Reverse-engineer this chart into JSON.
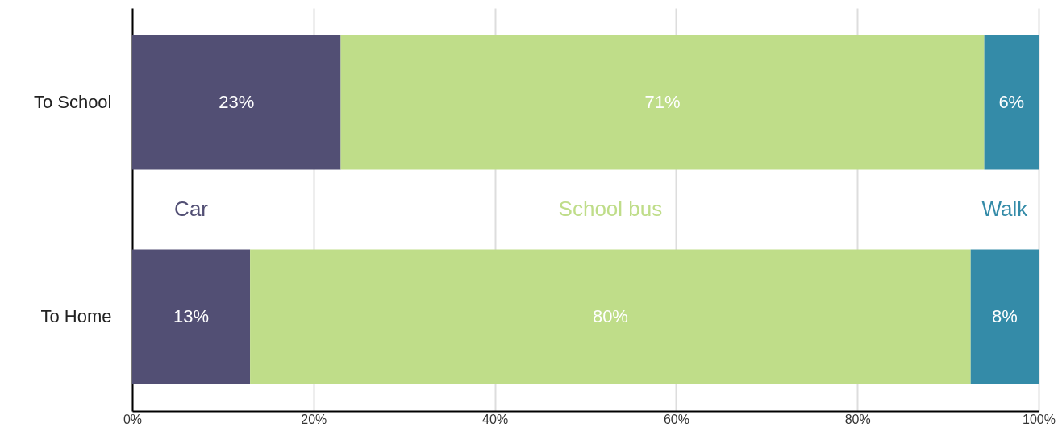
{
  "chart_data": {
    "type": "bar",
    "orientation": "horizontal",
    "stacked": true,
    "categories": [
      "To School",
      "To Home"
    ],
    "series": [
      {
        "name": "Car",
        "color": "#524f74",
        "values": [
          23,
          13
        ],
        "value_labels": [
          "23%",
          "13%"
        ]
      },
      {
        "name": "School bus",
        "color": "#bfdd89",
        "values": [
          71,
          79.5
        ],
        "value_labels": [
          "71%",
          "80%"
        ]
      },
      {
        "name": "Walk",
        "color": "#348ba8",
        "values": [
          6,
          7.5
        ],
        "value_labels": [
          "6%",
          "8%"
        ]
      }
    ],
    "xlim": [
      0,
      100
    ],
    "xticks": [
      {
        "value": 0,
        "label": "0%"
      },
      {
        "value": 20,
        "label": "20%"
      },
      {
        "value": 40,
        "label": "40%"
      },
      {
        "value": 60,
        "label": "60%"
      },
      {
        "value": 80,
        "label": "80%"
      },
      {
        "value": 100,
        "label": "100%"
      }
    ],
    "grid": "x",
    "legend": false
  }
}
